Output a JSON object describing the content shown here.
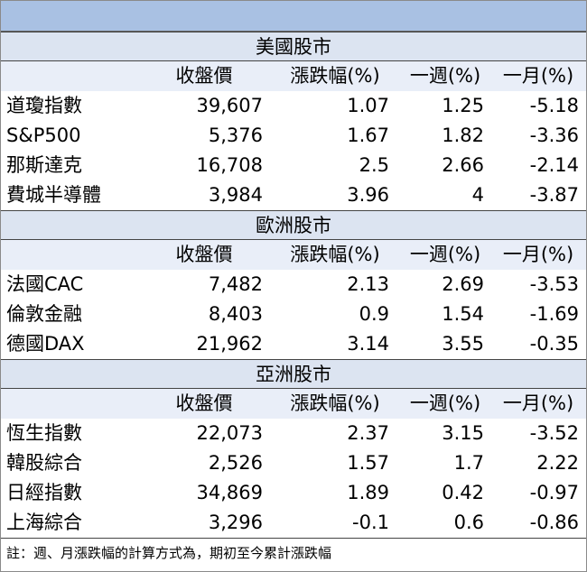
{
  "sections": [
    {
      "title": "美國股市",
      "columns": [
        "收盤價",
        "漲跌幅(%)",
        "一週(%)",
        "一月(%)"
      ],
      "rows": [
        [
          "道瓊指數",
          "39,607",
          "1.07",
          "1.25",
          "-5.18"
        ],
        [
          "S&P500",
          "5,376",
          "1.67",
          "1.82",
          "-3.36"
        ],
        [
          "那斯達克",
          "16,708",
          "2.5",
          "2.66",
          "-2.14"
        ],
        [
          "費城半導體",
          "3,984",
          "3.96",
          "4",
          "-3.87"
        ]
      ]
    },
    {
      "title": "歐洲股市",
      "columns": [
        "收盤價",
        "漲跌幅(%)",
        "一週(%)",
        "一月(%)"
      ],
      "rows": [
        [
          "法國CAC",
          "7,482",
          "2.13",
          "2.69",
          "-3.53"
        ],
        [
          "倫敦金融",
          "8,403",
          "0.9",
          "1.54",
          "-1.69"
        ],
        [
          "德國DAX",
          "21,962",
          "3.14",
          "3.55",
          "-0.35"
        ]
      ]
    },
    {
      "title": "亞洲股市",
      "columns": [
        "收盤價",
        "漲跌幅(%)",
        "一週(%)",
        "一月(%)"
      ],
      "rows": [
        [
          "恆生指數",
          "22,073",
          "2.37",
          "3.15",
          "-3.52"
        ],
        [
          "韓股綜合",
          "2,526",
          "1.57",
          "1.7",
          "2.22"
        ],
        [
          "日經指數",
          "34,869",
          "1.89",
          "0.42",
          "-0.97"
        ],
        [
          "上海綜合",
          "3,296",
          "-0.1",
          "0.6",
          "-0.86"
        ]
      ]
    }
  ],
  "note": "註：週、月漲跌幅的計算方式為，期初至今累計漲跌幅"
}
